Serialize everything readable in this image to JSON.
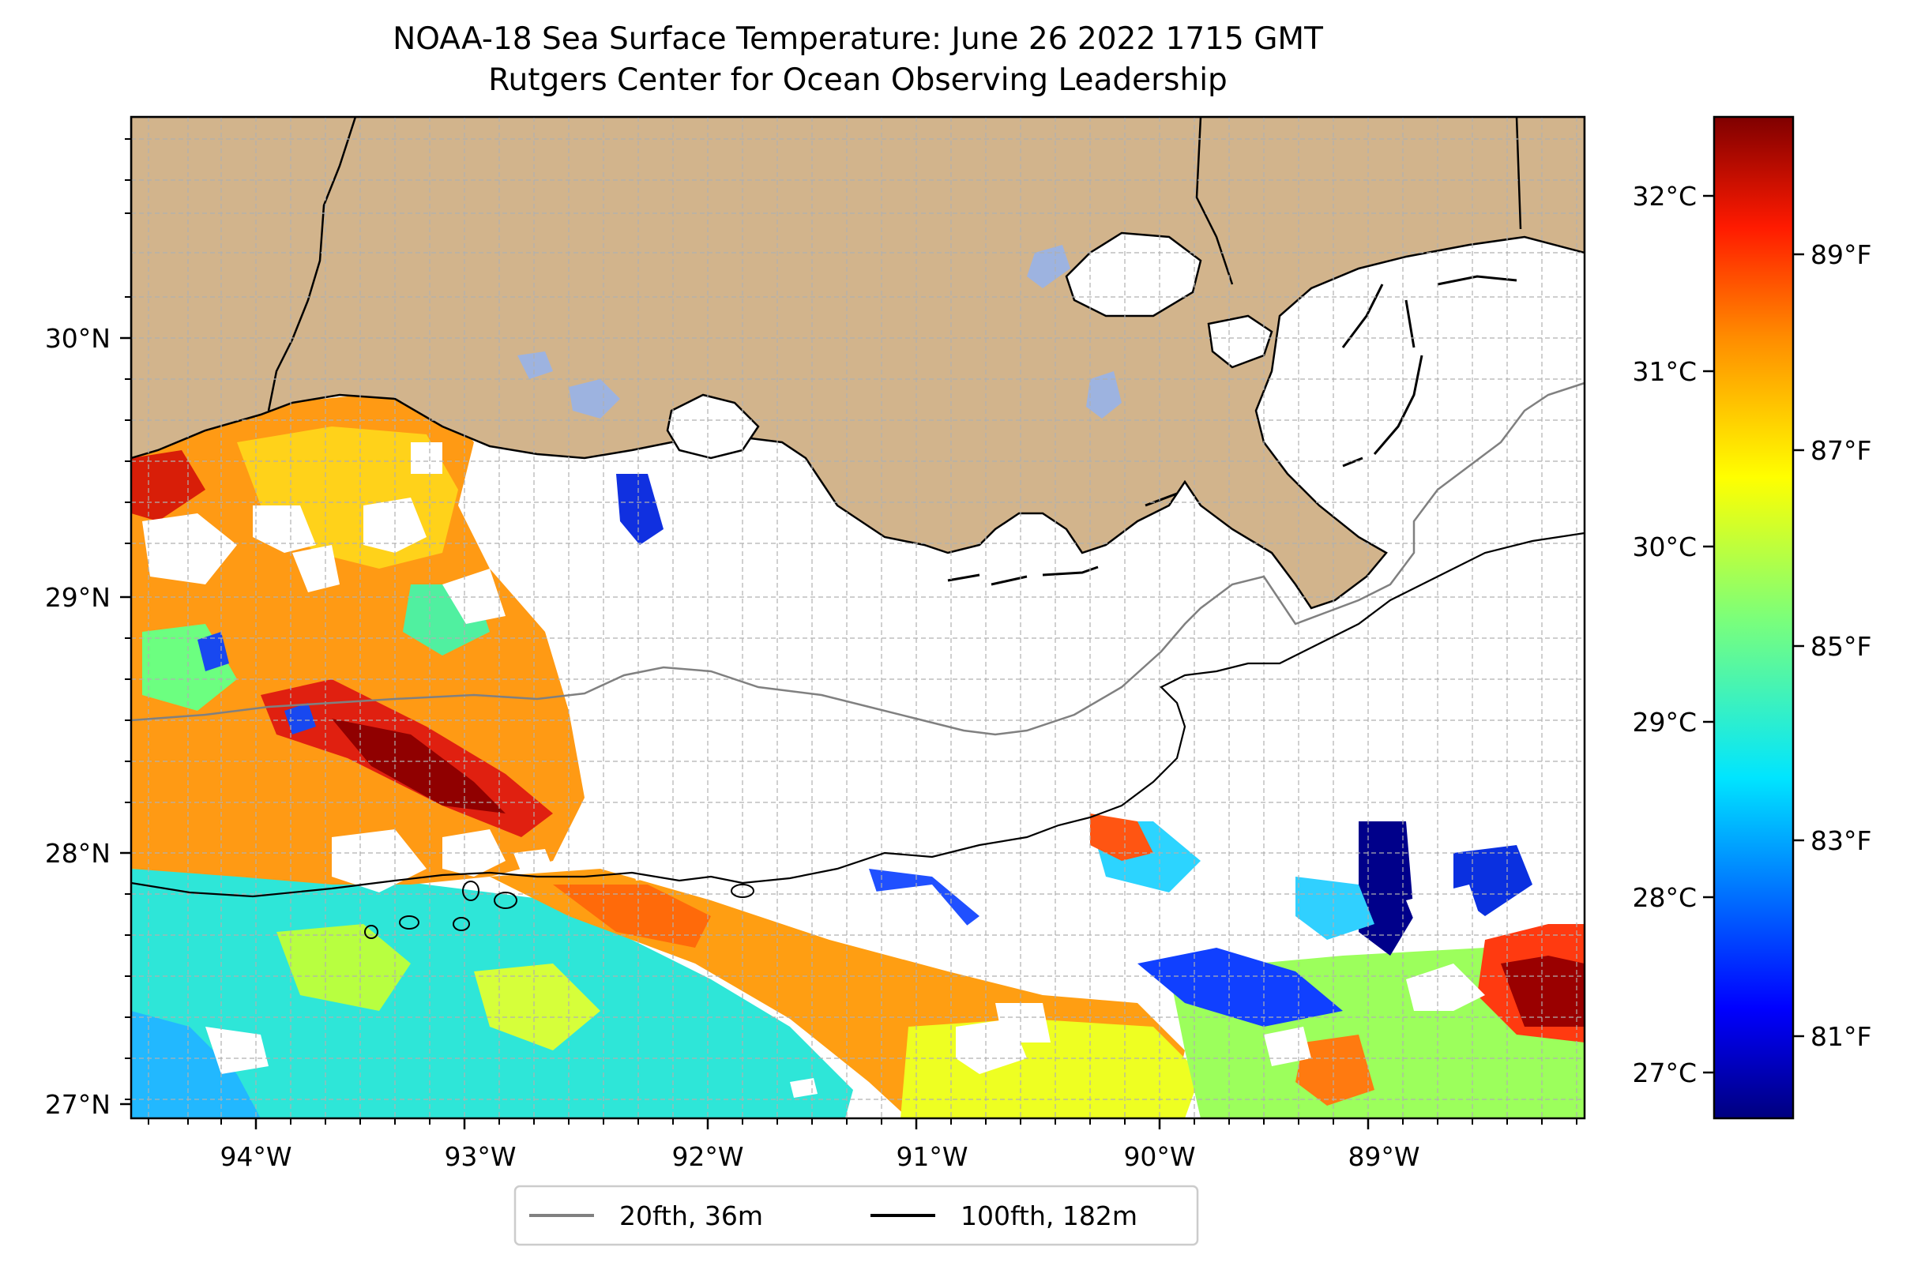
{
  "title": {
    "line1": "NOAA-18 Sea Surface Temperature: June 26 2022 1715 GMT",
    "line2": "Rutgers Center for Ocean Observing Leadership"
  },
  "axes": {
    "lon_ticks": [
      "94°W",
      "93°W",
      "92°W",
      "91°W",
      "90°W",
      "89°W"
    ],
    "lat_ticks": [
      "30°N",
      "29°N",
      "28°N",
      "27°N"
    ]
  },
  "colorbar": {
    "celsius_ticks": [
      "32°C",
      "31°C",
      "30°C",
      "29°C",
      "28°C",
      "27°C"
    ],
    "fahrenheit_ticks": [
      "89°F",
      "87°F",
      "85°F",
      "83°F",
      "81°F"
    ]
  },
  "legend": {
    "entries": [
      {
        "label": "20fth, 36m",
        "color": "#808080"
      },
      {
        "label": "100fth, 182m",
        "color": "#000000"
      }
    ]
  },
  "colors": {
    "land": "#d2b48c",
    "lakes": "#9db3e0",
    "grid": "#b0b0b0",
    "no_data": "#ffffff"
  }
}
